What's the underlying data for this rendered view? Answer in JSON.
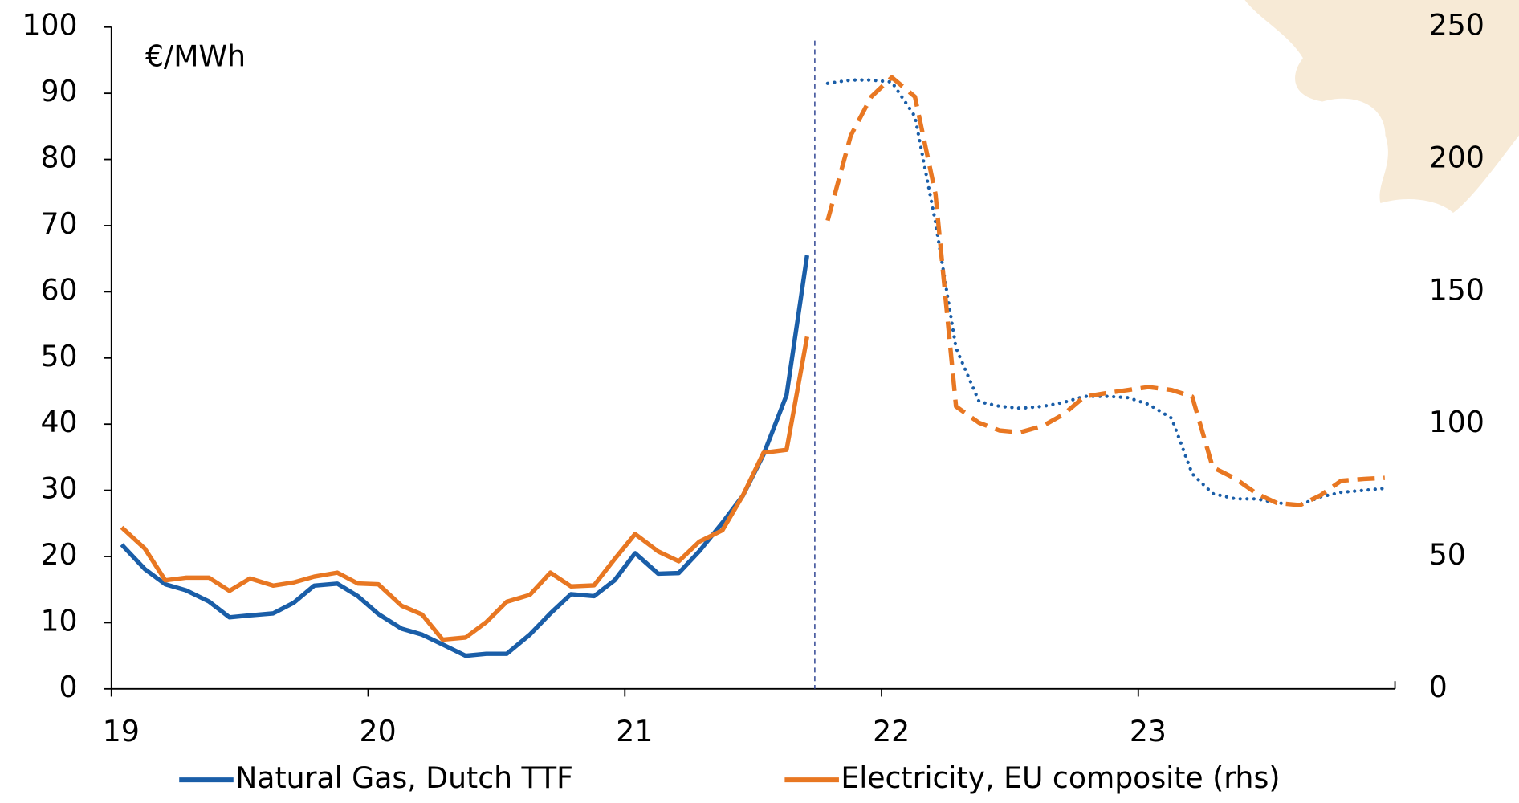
{
  "chart_data": {
    "type": "line",
    "unit_label": "€/MWh",
    "xlim": [
      19,
      24
    ],
    "xticks": [
      19,
      20,
      21,
      22,
      23
    ],
    "ylim": [
      0,
      100
    ],
    "yticks": [
      0,
      10,
      20,
      30,
      40,
      50,
      60,
      70,
      80,
      90,
      100
    ],
    "y2lim": [
      0,
      250
    ],
    "y2ticks": [
      0,
      50,
      100,
      150,
      200,
      250
    ],
    "vline": 21.74,
    "grid": false,
    "legend": "bottom",
    "series": [
      {
        "name": "Natural Gas, Dutch TTF",
        "color": "#1a5ea8",
        "dash": "solid",
        "x": [
          19.04,
          19.13,
          19.21,
          19.29,
          19.38,
          19.46,
          19.54,
          19.63,
          19.71,
          19.79,
          19.88,
          19.96,
          20.04,
          20.13,
          20.21,
          20.29,
          20.38,
          20.46,
          20.54,
          20.63,
          20.71,
          20.79,
          20.88,
          20.96,
          21.04,
          21.13,
          21.21,
          21.29,
          21.38,
          21.46,
          21.54,
          21.63,
          21.71
        ],
        "values": [
          21.8,
          18.1,
          15.8,
          14.9,
          13.2,
          10.8,
          11.1,
          11.4,
          13,
          15.6,
          15.9,
          14,
          11.3,
          9.1,
          8.2,
          6.7,
          5,
          5.3,
          5.3,
          8.2,
          11.4,
          14.3,
          14,
          16.4,
          20.5,
          17.4,
          17.5,
          20.8,
          25.1,
          29.2,
          35.4,
          44.4,
          65.5
        ]
      },
      {
        "name": "Electricity, EU composite (rhs)",
        "color": "#e87722",
        "dash": "solid",
        "axis": "y2",
        "x": [
          19.04,
          19.13,
          19.21,
          19.29,
          19.38,
          19.46,
          19.54,
          19.63,
          19.71,
          19.79,
          19.88,
          19.96,
          20.04,
          20.13,
          20.21,
          20.29,
          20.38,
          20.46,
          20.54,
          20.63,
          20.71,
          20.79,
          20.88,
          20.96,
          21.04,
          21.13,
          21.21,
          21.29,
          21.38,
          21.46,
          21.54,
          21.63,
          21.71
        ],
        "values": [
          61,
          53,
          41,
          42,
          42,
          37,
          41.7,
          39,
          40.2,
          42.4,
          43.9,
          39.8,
          39.5,
          31.4,
          28.1,
          18.6,
          19.4,
          25.2,
          32.9,
          35.5,
          43.9,
          38.7,
          39.1,
          49,
          58.5,
          51.9,
          48.2,
          55.6,
          59.9,
          73.1,
          89.2,
          90.3,
          133
        ]
      },
      {
        "color": "#1a5ea8",
        "dash": "dotted",
        "x": [
          21.79,
          21.88,
          21.96,
          22.04,
          22.13,
          22.21,
          22.29,
          22.38,
          22.46,
          22.54,
          22.63,
          22.71,
          22.79,
          22.88,
          22.96,
          23.04,
          23.13,
          23.21,
          23.29,
          23.38,
          23.46,
          23.54,
          23.63,
          23.71,
          23.79,
          23.88,
          23.96
        ],
        "values": [
          91.5,
          92,
          92,
          91.7,
          86.5,
          70.5,
          51.5,
          43.4,
          42.7,
          42.4,
          42.7,
          43.3,
          44.2,
          44.2,
          44,
          43,
          40.9,
          32.5,
          29.5,
          28.7,
          28.7,
          28.1,
          27.8,
          29,
          29.7,
          30,
          30.3
        ]
      },
      {
        "color": "#e87722",
        "dash": "dashed",
        "axis": "y2",
        "x": [
          21.79,
          21.88,
          21.96,
          22.04,
          22.13,
          22.21,
          22.29,
          22.38,
          22.46,
          22.54,
          22.63,
          22.71,
          22.79,
          22.88,
          22.96,
          23.04,
          23.13,
          23.21,
          23.29,
          23.38,
          23.46,
          23.54,
          23.63,
          23.71,
          23.79,
          23.88,
          23.96
        ],
        "values": [
          176.9,
          209,
          223.7,
          231,
          223.7,
          187,
          106.7,
          100.5,
          97.6,
          96.9,
          99.4,
          103.8,
          110.4,
          111.8,
          112.9,
          114,
          112.9,
          110.4,
          83.7,
          79.3,
          73.8,
          70.2,
          69.4,
          73.1,
          78.6,
          79.3,
          79.7
        ]
      }
    ]
  }
}
